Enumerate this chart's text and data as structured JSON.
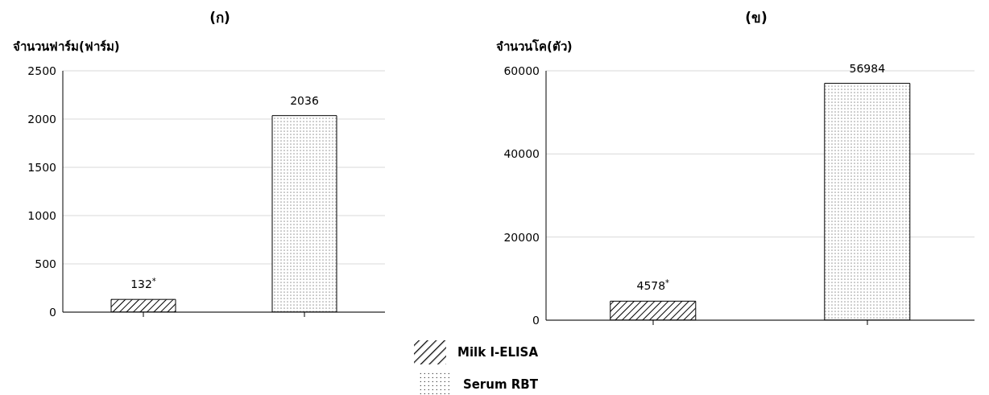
{
  "chart_data": [
    {
      "type": "bar",
      "title": "(ก)",
      "ylabel": "จำนวนฟาร์ม(ฟาร์ม)",
      "categories": [
        null,
        null
      ],
      "ylim": [
        0,
        2500
      ],
      "yticks": [
        0,
        500,
        1000,
        1500,
        2000,
        2500
      ],
      "grid": "y",
      "legend": "bottom right",
      "series": [
        {
          "name": "Milk I-ELISA",
          "color": "#000000",
          "values": [
            132,
            null
          ],
          "value_labels": [
            "132$^{*}$",
            null
          ]
        },
        {
          "name": "Serum RBT",
          "color": "#000000",
          "values": [
            null,
            2036
          ],
          "value_labels": [
            null,
            "2036"
          ]
        }
      ]
    },
    {
      "type": "bar",
      "title": "(ข)",
      "ylabel": "จำนวนโค(ตัว)",
      "categories": [
        null,
        null
      ],
      "ylim": [
        0,
        60000
      ],
      "yticks": [
        0,
        20000,
        40000,
        60000
      ],
      "grid": "y",
      "series": [
        {
          "color": "#000000",
          "values": [
            4578,
            null
          ],
          "value_labels": [
            "4578$^{*}$",
            null
          ]
        },
        {
          "color": "#000000",
          "values": [
            null,
            56984
          ],
          "value_labels": [
            null,
            "56984"
          ]
        }
      ]
    }
  ]
}
